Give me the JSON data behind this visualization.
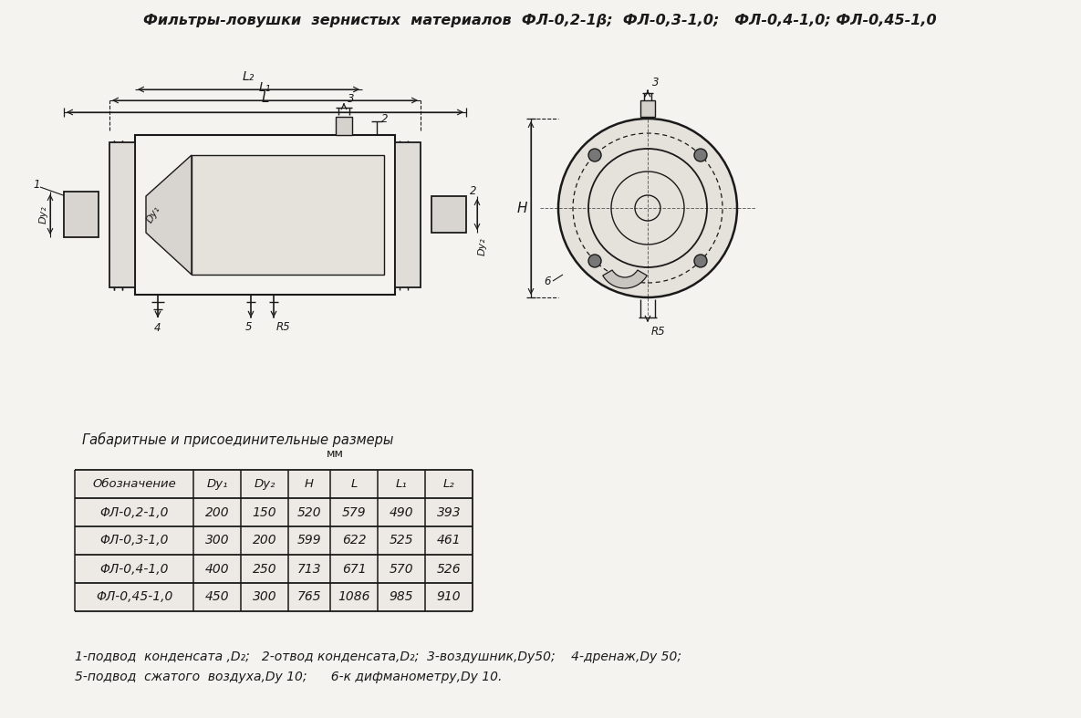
{
  "title": "Фильтры-ловушки  зернистых  материалов  ФЛ-0,2-1β;  ФЛ-0,3-1,0;   ФЛ-0,4-1,0; ФЛ-0,45-1,0",
  "table_title": "Габаритные и присоединительные размеры",
  "table_subtitle": "мм",
  "col_headers": [
    "Обозначение",
    "Dy₁",
    "Dy₂",
    "H",
    "L",
    "L₁",
    "L₂"
  ],
  "table_data": [
    [
      "ΦЛ-0,2-1,0",
      "200",
      "150",
      "520",
      "579",
      "490",
      "393"
    ],
    [
      "ΦЛ-0,3-1,0",
      "300",
      "200",
      "599",
      "622",
      "525",
      "461"
    ],
    [
      "ΦЛ-0,4-1,0",
      "400",
      "250",
      "713",
      "671",
      "570",
      "526"
    ],
    [
      "ΦЛ-0,45-1,0",
      "450",
      "300",
      "765",
      "1086",
      "985",
      "910"
    ]
  ],
  "footnote_line1": "1-подвод  конденсата ,D₂;   2-отвод конденсата,D₂;  3-воздушник,Dy50;    4-дренаж,Dy 50;",
  "footnote_line2": "5-подвод  сжатого  воздуха,Dy 10;      6-к дифманометру,Dy 10.",
  "bg_color": "#f5f3ef",
  "line_color": "#1a1a1a",
  "text_color": "#1a1a1a"
}
